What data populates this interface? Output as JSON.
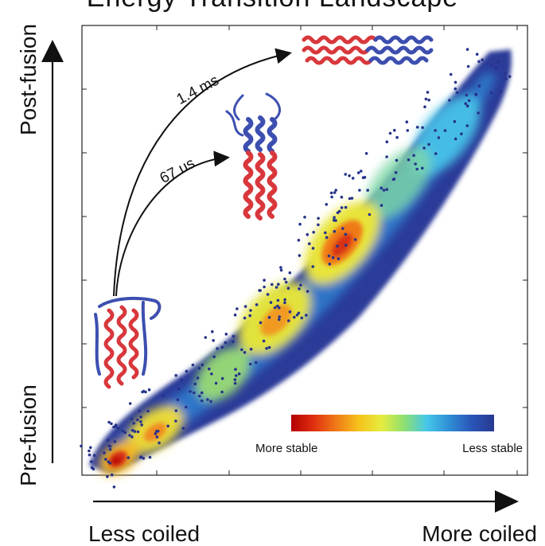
{
  "title": "Energy Transition Landscape",
  "axes": {
    "y_top_label": "Post-fusion",
    "y_bottom_label": "Pre-fusion",
    "x_left_label": "Less coiled",
    "x_right_label": "More coiled"
  },
  "pathways": [
    {
      "label": "1.4 ms"
    },
    {
      "label": "67 us"
    }
  ],
  "colorbar": {
    "left_label": "More stable",
    "right_label": "Less stable",
    "stops": [
      "#b40000",
      "#e03010",
      "#f07a18",
      "#f6c21a",
      "#e6ec40",
      "#8fe070",
      "#46c8e8",
      "#2f8fd6",
      "#2a56b8",
      "#283890"
    ]
  },
  "helix_colors": {
    "fusion_peptide": "#d8373c",
    "coil": "#3c4fb0"
  }
}
